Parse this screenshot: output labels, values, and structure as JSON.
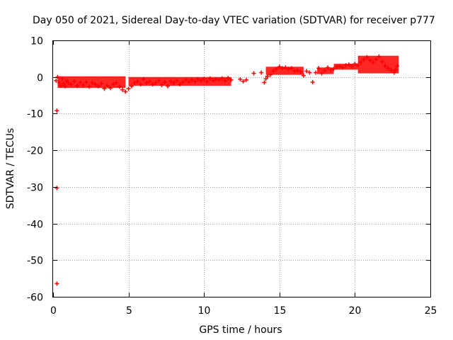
{
  "chart_data": {
    "type": "scatter",
    "title": "Day 050 of 2021, Sidereal Day-to-day VTEC variation (SDTVAR) for receiver p777",
    "xlabel": "GPS time / hours",
    "ylabel": "SDTVAR / TECUs",
    "xlim": [
      0,
      25
    ],
    "ylim": [
      -60,
      10
    ],
    "xticks": [
      0,
      5,
      10,
      15,
      20,
      25
    ],
    "yticks": [
      10,
      0,
      -10,
      -20,
      -30,
      -40,
      -50,
      -60
    ],
    "grid": true,
    "marker": "plus",
    "color": "#ff0000",
    "series": [
      {
        "name": "SDTVAR",
        "points": [
          [
            0.25,
            -9.2
          ],
          [
            0.25,
            -30.3
          ],
          [
            0.25,
            -56.4
          ],
          [
            0.2,
            -1.0
          ],
          [
            0.3,
            0.0
          ],
          [
            0.4,
            -1.5
          ],
          [
            0.5,
            -2.3
          ],
          [
            0.6,
            -0.5
          ],
          [
            0.7,
            -1.8
          ],
          [
            0.8,
            -2.5
          ],
          [
            0.9,
            -1.0
          ],
          [
            1.0,
            -1.6
          ],
          [
            1.2,
            -2.0
          ],
          [
            1.4,
            -1.2
          ],
          [
            1.6,
            -2.4
          ],
          [
            1.8,
            -1.5
          ],
          [
            2.0,
            -2.2
          ],
          [
            2.2,
            -1.4
          ],
          [
            2.4,
            -2.6
          ],
          [
            2.6,
            -1.6
          ],
          [
            2.8,
            -2.0
          ],
          [
            3.0,
            -2.5
          ],
          [
            3.2,
            -1.8
          ],
          [
            3.4,
            -3.2
          ],
          [
            3.6,
            -2.4
          ],
          [
            3.8,
            -3.0
          ],
          [
            4.0,
            -2.0
          ],
          [
            4.2,
            -1.6
          ],
          [
            4.4,
            -2.6
          ],
          [
            4.6,
            -3.5
          ],
          [
            4.8,
            -4.0
          ],
          [
            5.0,
            -3.2
          ],
          [
            5.2,
            -2.5
          ],
          [
            5.4,
            -1.6
          ],
          [
            5.6,
            -1.2
          ],
          [
            5.8,
            -2.0
          ],
          [
            6.0,
            -0.6
          ],
          [
            6.2,
            -1.6
          ],
          [
            6.4,
            -1.2
          ],
          [
            6.6,
            -2.0
          ],
          [
            6.8,
            -1.6
          ],
          [
            7.0,
            -1.0
          ],
          [
            7.2,
            -2.2
          ],
          [
            7.4,
            -1.4
          ],
          [
            7.6,
            -2.5
          ],
          [
            7.8,
            -1.2
          ],
          [
            8.0,
            -1.6
          ],
          [
            8.2,
            -1.0
          ],
          [
            8.4,
            -2.0
          ],
          [
            8.6,
            -1.4
          ],
          [
            8.8,
            -0.8
          ],
          [
            9.0,
            -1.4
          ],
          [
            9.2,
            -0.8
          ],
          [
            9.4,
            -1.2
          ],
          [
            9.6,
            -0.6
          ],
          [
            9.8,
            -1.0
          ],
          [
            10.0,
            -0.5
          ],
          [
            10.2,
            -1.2
          ],
          [
            10.4,
            -0.4
          ],
          [
            10.6,
            -1.0
          ],
          [
            10.8,
            -0.6
          ],
          [
            11.0,
            -0.8
          ],
          [
            11.2,
            -0.4
          ],
          [
            11.4,
            -1.0
          ],
          [
            11.6,
            -0.3
          ],
          [
            11.8,
            -0.8
          ],
          [
            12.4,
            -0.6
          ],
          [
            12.6,
            -1.2
          ],
          [
            12.8,
            -0.8
          ],
          [
            13.3,
            1.0
          ],
          [
            13.8,
            1.2
          ],
          [
            14.0,
            -1.5
          ],
          [
            14.1,
            -0.5
          ],
          [
            14.2,
            0.2
          ],
          [
            14.4,
            0.6
          ],
          [
            14.6,
            1.6
          ],
          [
            14.8,
            2.2
          ],
          [
            15.0,
            2.8
          ],
          [
            15.2,
            2.4
          ],
          [
            15.4,
            2.6
          ],
          [
            15.6,
            2.2
          ],
          [
            15.8,
            2.4
          ],
          [
            16.0,
            1.6
          ],
          [
            16.2,
            1.8
          ],
          [
            16.4,
            1.4
          ],
          [
            16.6,
            0.4
          ],
          [
            16.8,
            1.6
          ],
          [
            17.0,
            1.2
          ],
          [
            17.2,
            -1.4
          ],
          [
            17.4,
            1.2
          ],
          [
            17.6,
            2.4
          ],
          [
            17.8,
            1.0
          ],
          [
            18.0,
            1.8
          ],
          [
            18.2,
            2.6
          ],
          [
            18.4,
            2.0
          ],
          [
            18.6,
            2.2
          ],
          [
            18.8,
            2.8
          ],
          [
            19.0,
            3.0
          ],
          [
            19.2,
            2.6
          ],
          [
            19.4,
            3.2
          ],
          [
            19.6,
            3.4
          ],
          [
            19.8,
            3.0
          ],
          [
            20.0,
            3.6
          ],
          [
            20.2,
            3.2
          ],
          [
            20.4,
            4.0
          ],
          [
            20.6,
            4.8
          ],
          [
            20.8,
            5.4
          ],
          [
            21.0,
            4.6
          ],
          [
            21.2,
            4.0
          ],
          [
            21.4,
            4.8
          ],
          [
            21.6,
            5.6
          ],
          [
            21.8,
            4.2
          ],
          [
            22.0,
            3.0
          ],
          [
            22.2,
            2.4
          ],
          [
            22.4,
            1.8
          ],
          [
            22.6,
            1.2
          ],
          [
            22.7,
            2.0
          ],
          [
            22.8,
            3.0
          ]
        ],
        "bands": [
          [
            0.3,
            4.8,
            -3.0,
            0.2
          ],
          [
            5.0,
            11.8,
            -2.4,
            0.0
          ],
          [
            14.1,
            16.6,
            0.6,
            2.8
          ],
          [
            17.5,
            18.6,
            0.8,
            2.6
          ],
          [
            18.6,
            20.2,
            2.0,
            3.6
          ],
          [
            20.2,
            22.9,
            1.0,
            5.8
          ]
        ]
      }
    ]
  }
}
